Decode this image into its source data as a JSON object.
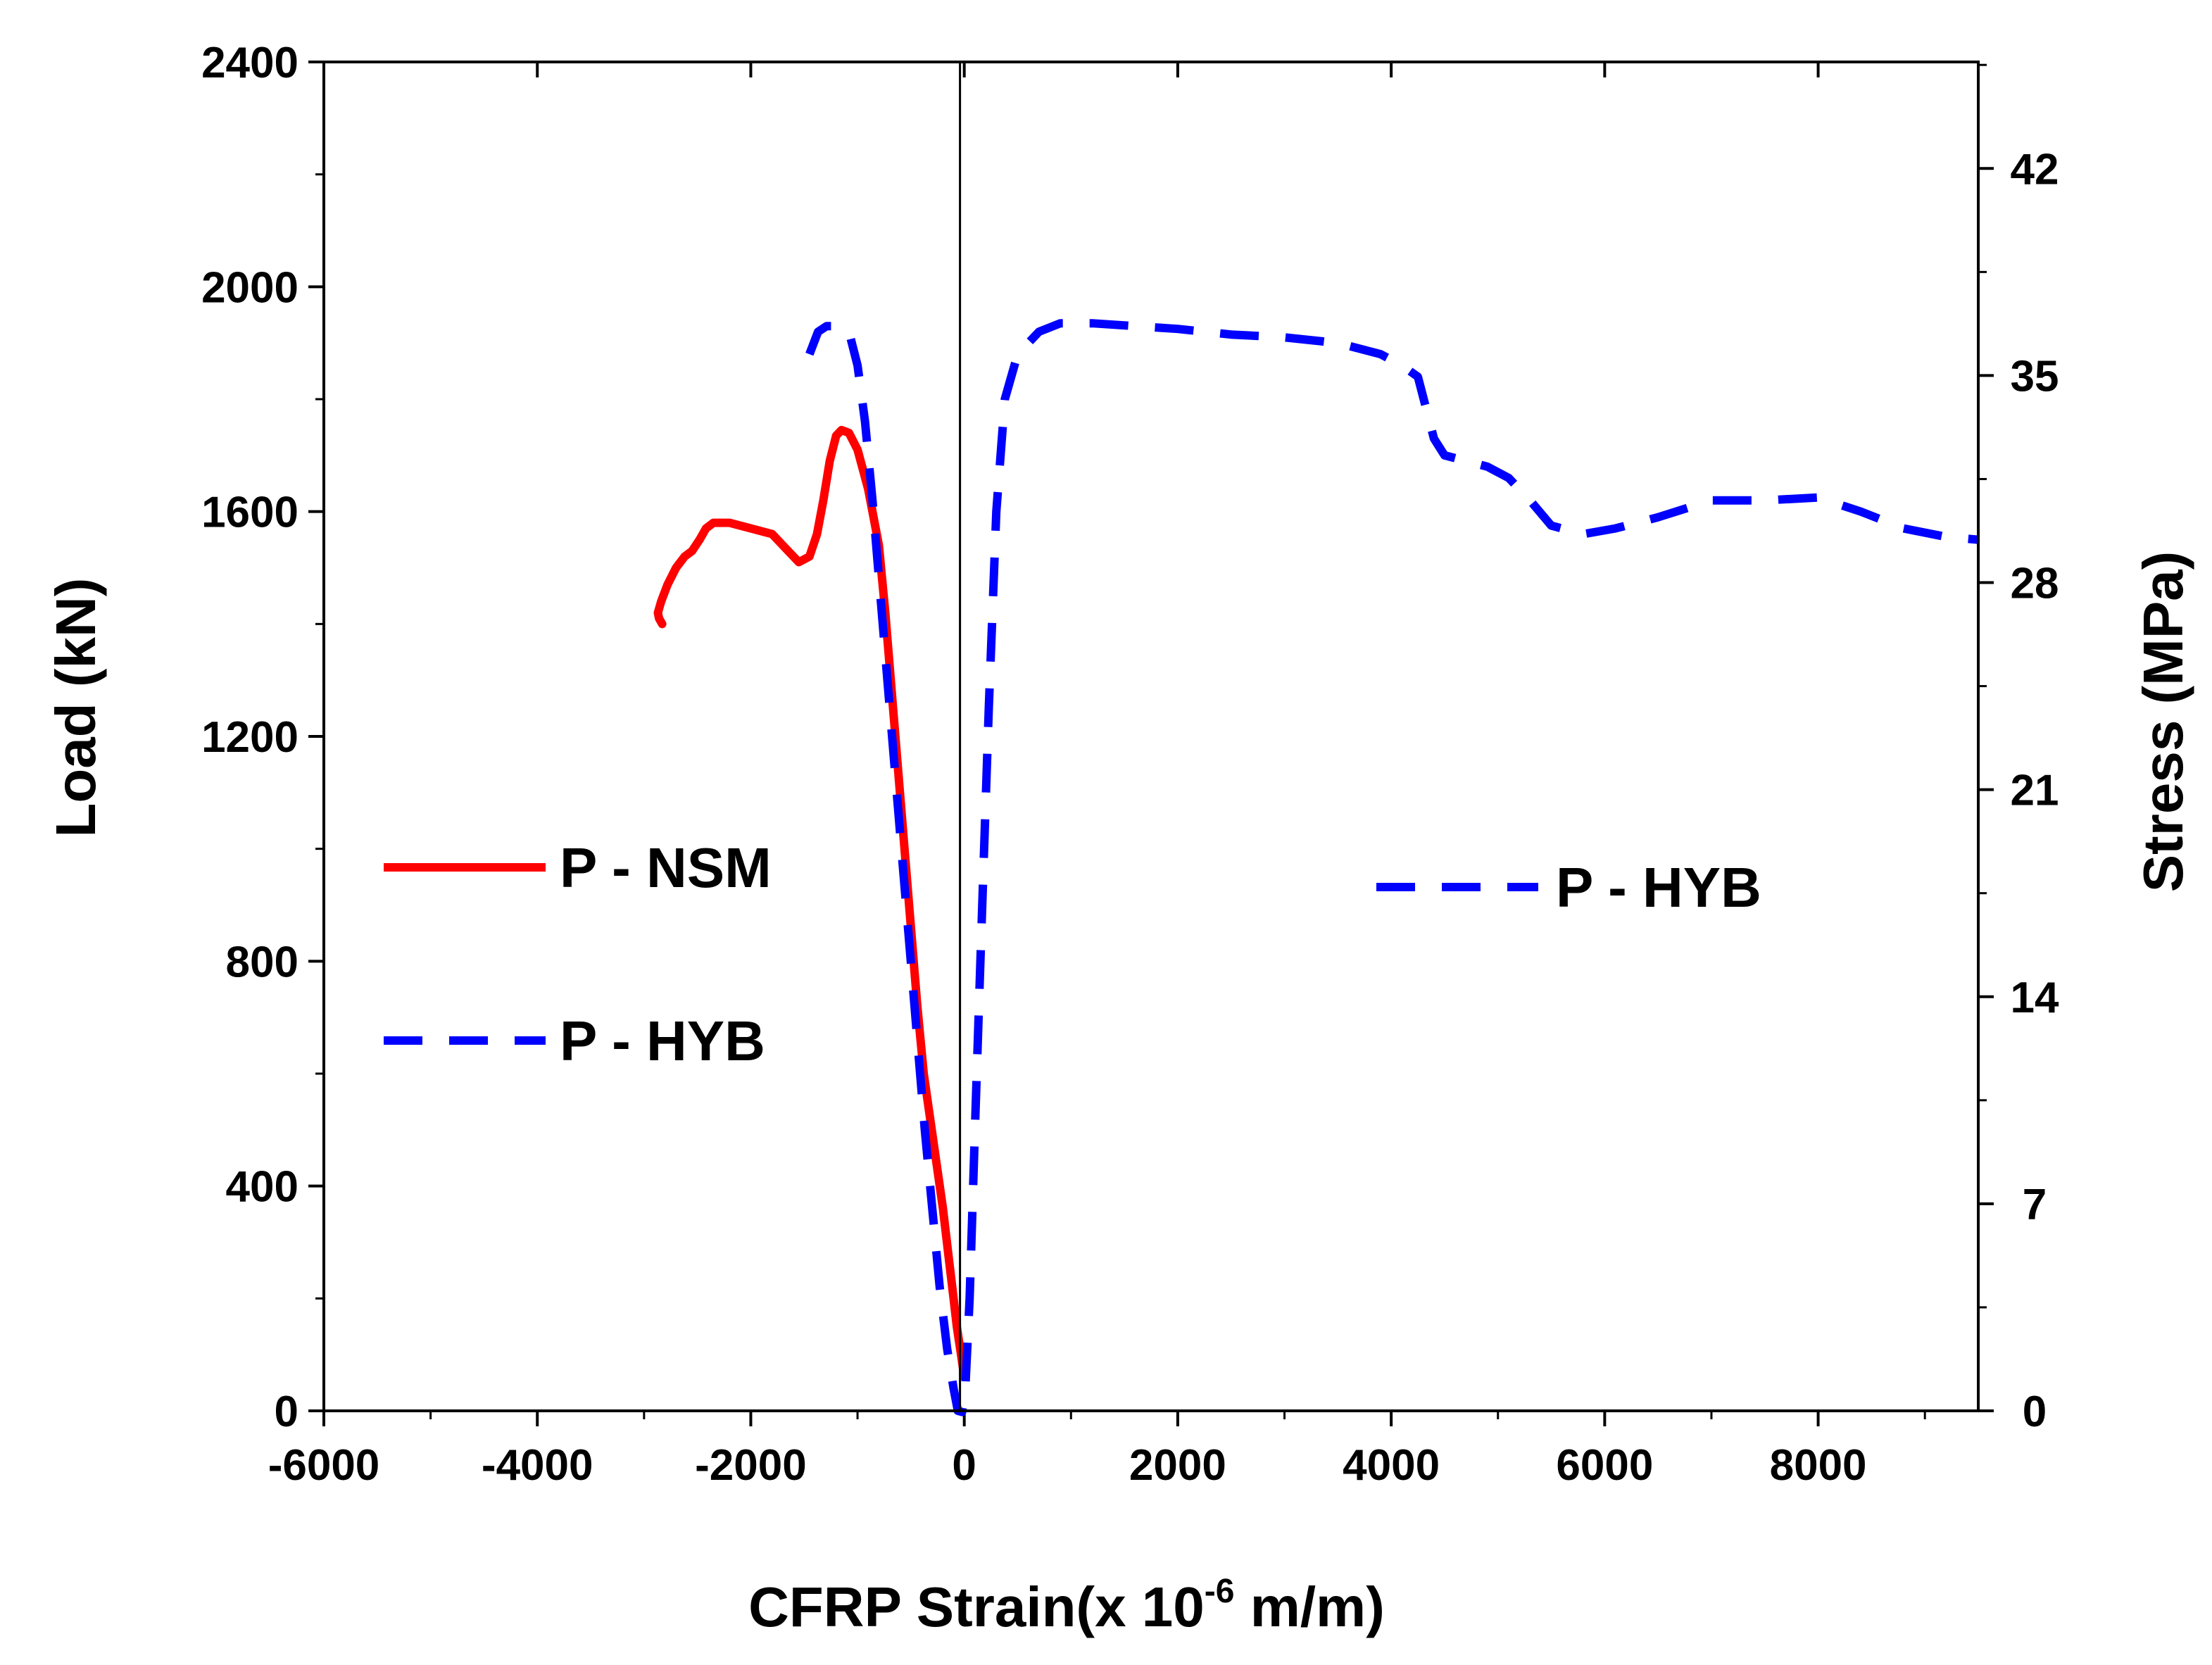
{
  "chart_data": {
    "type": "line",
    "xlabel": "CFRP Strain(x 10",
    "xlabel_exponent": "-6",
    "xlabel_suffix": " m/m)",
    "ylabel": "Load (kN)",
    "y2label": "Stress (MPa)",
    "xlim": [
      -6000,
      9500
    ],
    "ylim": [
      0,
      2400
    ],
    "y2lim": [
      0,
      45.6
    ],
    "x_ticks": [
      -6000,
      -4000,
      -2000,
      0,
      2000,
      4000,
      6000,
      8000
    ],
    "x_tick_labels": [
      "-6000",
      "-4000",
      "-2000",
      "0",
      "2000",
      "4000",
      "6000",
      "8000"
    ],
    "y_ticks": [
      0,
      400,
      800,
      1200,
      1600,
      2000,
      2400
    ],
    "y_tick_labels": [
      "0",
      "400",
      "800",
      "1200",
      "1600",
      "2000",
      "2400"
    ],
    "y2_ticks": [
      0,
      7,
      14,
      21,
      28,
      35,
      42
    ],
    "y2_tick_labels": [
      "0",
      "7",
      "14",
      "21",
      "28",
      "35",
      "42"
    ],
    "zero_line_x": -40,
    "legend_left": [
      {
        "label": "P - NSM",
        "color": "#ff0000",
        "style": "solid"
      },
      {
        "label": "P - HYB",
        "color": "#0000ff",
        "style": "dashed"
      }
    ],
    "legend_right": [
      {
        "label": "P - HYB",
        "color": "#0000ff",
        "style": "dashed"
      }
    ],
    "series": [
      {
        "name": "P - NSM",
        "color": "#ff0000",
        "style": "solid",
        "points": [
          [
            0,
            60
          ],
          [
            -30,
            100
          ],
          [
            -70,
            150
          ],
          [
            -100,
            200
          ],
          [
            -150,
            280
          ],
          [
            -200,
            360
          ],
          [
            -260,
            440
          ],
          [
            -320,
            520
          ],
          [
            -380,
            600
          ],
          [
            -440,
            720
          ],
          [
            -500,
            860
          ],
          [
            -560,
            1000
          ],
          [
            -620,
            1140
          ],
          [
            -680,
            1280
          ],
          [
            -740,
            1420
          ],
          [
            -800,
            1540
          ],
          [
            -900,
            1640
          ],
          [
            -1000,
            1710
          ],
          [
            -1080,
            1740
          ],
          [
            -1150,
            1745
          ],
          [
            -1200,
            1735
          ],
          [
            -1260,
            1690
          ],
          [
            -1320,
            1620
          ],
          [
            -1380,
            1560
          ],
          [
            -1450,
            1520
          ],
          [
            -1550,
            1510
          ],
          [
            -1650,
            1530
          ],
          [
            -1800,
            1560
          ],
          [
            -2000,
            1570
          ],
          [
            -2200,
            1580
          ],
          [
            -2350,
            1580
          ],
          [
            -2420,
            1570
          ],
          [
            -2480,
            1550
          ],
          [
            -2550,
            1530
          ],
          [
            -2620,
            1520
          ],
          [
            -2700,
            1500
          ],
          [
            -2780,
            1470
          ],
          [
            -2840,
            1440
          ],
          [
            -2870,
            1420
          ],
          [
            -2860,
            1410
          ],
          [
            -2830,
            1400
          ]
        ]
      },
      {
        "name": "P - HYB",
        "color": "#0000ff",
        "style": "dashed",
        "points": [
          [
            -1450,
            1880
          ],
          [
            -1370,
            1920
          ],
          [
            -1290,
            1930
          ],
          [
            -1180,
            1930
          ],
          [
            -1080,
            1920
          ],
          [
            -1000,
            1860
          ],
          [
            -930,
            1760
          ],
          [
            -860,
            1620
          ],
          [
            -790,
            1460
          ],
          [
            -720,
            1300
          ],
          [
            -650,
            1140
          ],
          [
            -580,
            980
          ],
          [
            -510,
            820
          ],
          [
            -440,
            660
          ],
          [
            -370,
            500
          ],
          [
            -300,
            360
          ],
          [
            -230,
            220
          ],
          [
            -160,
            110
          ],
          [
            -100,
            40
          ],
          [
            -60,
            0
          ],
          [
            -20,
            -5
          ],
          [
            10,
            40
          ],
          [
            50,
            200
          ],
          [
            100,
            500
          ],
          [
            160,
            850
          ],
          [
            230,
            1250
          ],
          [
            300,
            1600
          ],
          [
            380,
            1800
          ],
          [
            500,
            1880
          ],
          [
            700,
            1920
          ],
          [
            900,
            1935
          ],
          [
            1200,
            1935
          ],
          [
            1600,
            1930
          ],
          [
            2000,
            1925
          ],
          [
            2500,
            1915
          ],
          [
            3000,
            1910
          ],
          [
            3500,
            1900
          ],
          [
            3900,
            1880
          ],
          [
            4100,
            1860
          ],
          [
            4250,
            1840
          ],
          [
            4400,
            1730
          ],
          [
            4500,
            1700
          ],
          [
            4700,
            1690
          ],
          [
            4900,
            1680
          ],
          [
            5100,
            1660
          ],
          [
            5300,
            1620
          ],
          [
            5500,
            1575
          ],
          [
            5800,
            1560
          ],
          [
            6100,
            1570
          ],
          [
            6500,
            1590
          ],
          [
            7000,
            1620
          ],
          [
            7500,
            1620
          ],
          [
            8000,
            1625
          ],
          [
            8400,
            1600
          ],
          [
            8800,
            1570
          ],
          [
            9200,
            1555
          ],
          [
            9500,
            1550
          ]
        ]
      }
    ]
  }
}
